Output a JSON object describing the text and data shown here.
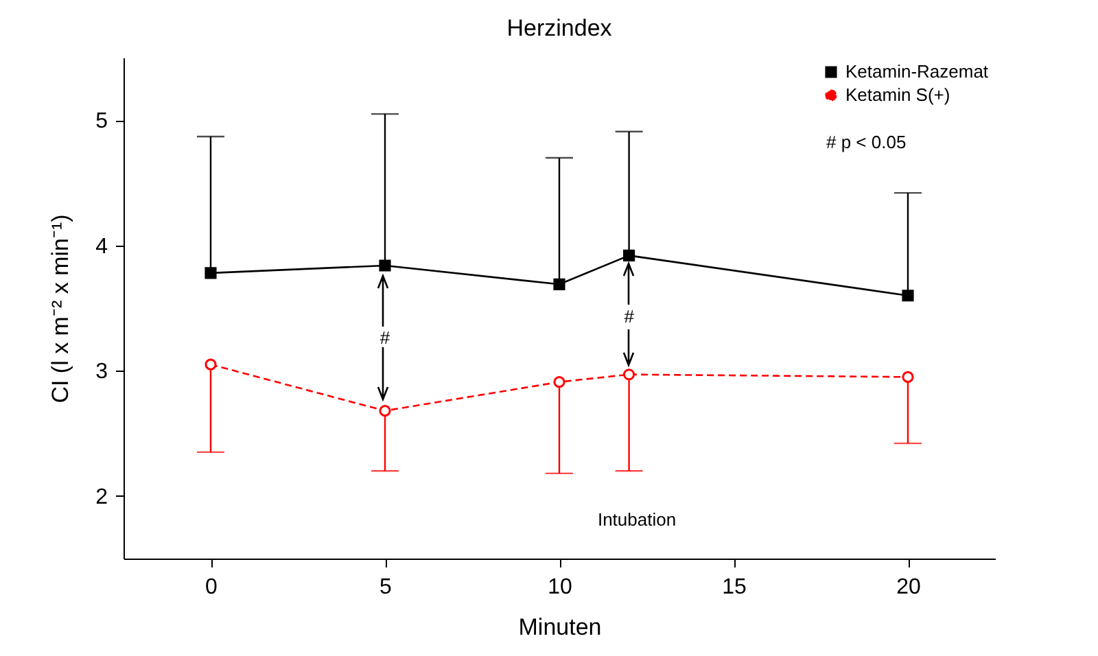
{
  "chart_data": {
    "type": "line",
    "title": "Herzindex",
    "xlabel": "Minuten",
    "ylabel": "CI (l x m⁻² x min⁻¹)",
    "x": [
      0,
      5,
      10,
      12,
      20
    ],
    "series": [
      {
        "name": "Ketamin-Razemat",
        "color": "#000000",
        "marker": "square",
        "line_style": "solid",
        "values": [
          3.78,
          3.84,
          3.69,
          3.92,
          3.6
        ],
        "errors": [
          [
            3.78,
            4.87
          ],
          [
            3.84,
            5.05
          ],
          [
            3.69,
            4.7
          ],
          [
            3.92,
            4.91
          ],
          [
            3.6,
            4.42
          ]
        ]
      },
      {
        "name": "Ketamin S(+)",
        "color": "#ff0000",
        "marker": "circle",
        "line_style": "dashed",
        "values": [
          3.05,
          2.68,
          2.91,
          2.97,
          2.95
        ],
        "errors": [
          [
            2.35,
            3.05
          ],
          [
            2.2,
            2.68
          ],
          [
            2.18,
            2.91
          ],
          [
            2.2,
            2.97
          ],
          [
            2.42,
            2.95
          ]
        ]
      }
    ],
    "xlim": [
      -2.5,
      22.5
    ],
    "xticks": [
      0,
      5,
      10,
      15,
      20
    ],
    "ylim": [
      1.5,
      5.5
    ],
    "yticks": [
      2,
      3,
      4,
      5
    ],
    "grid": false,
    "legend": "top right",
    "annotations": [
      {
        "text": "#",
        "x": 5,
        "y": 3.84
      },
      {
        "text": "#",
        "x": 12,
        "y": 3.92
      },
      "Intubation",
      "#     p < 0.05"
    ]
  }
}
